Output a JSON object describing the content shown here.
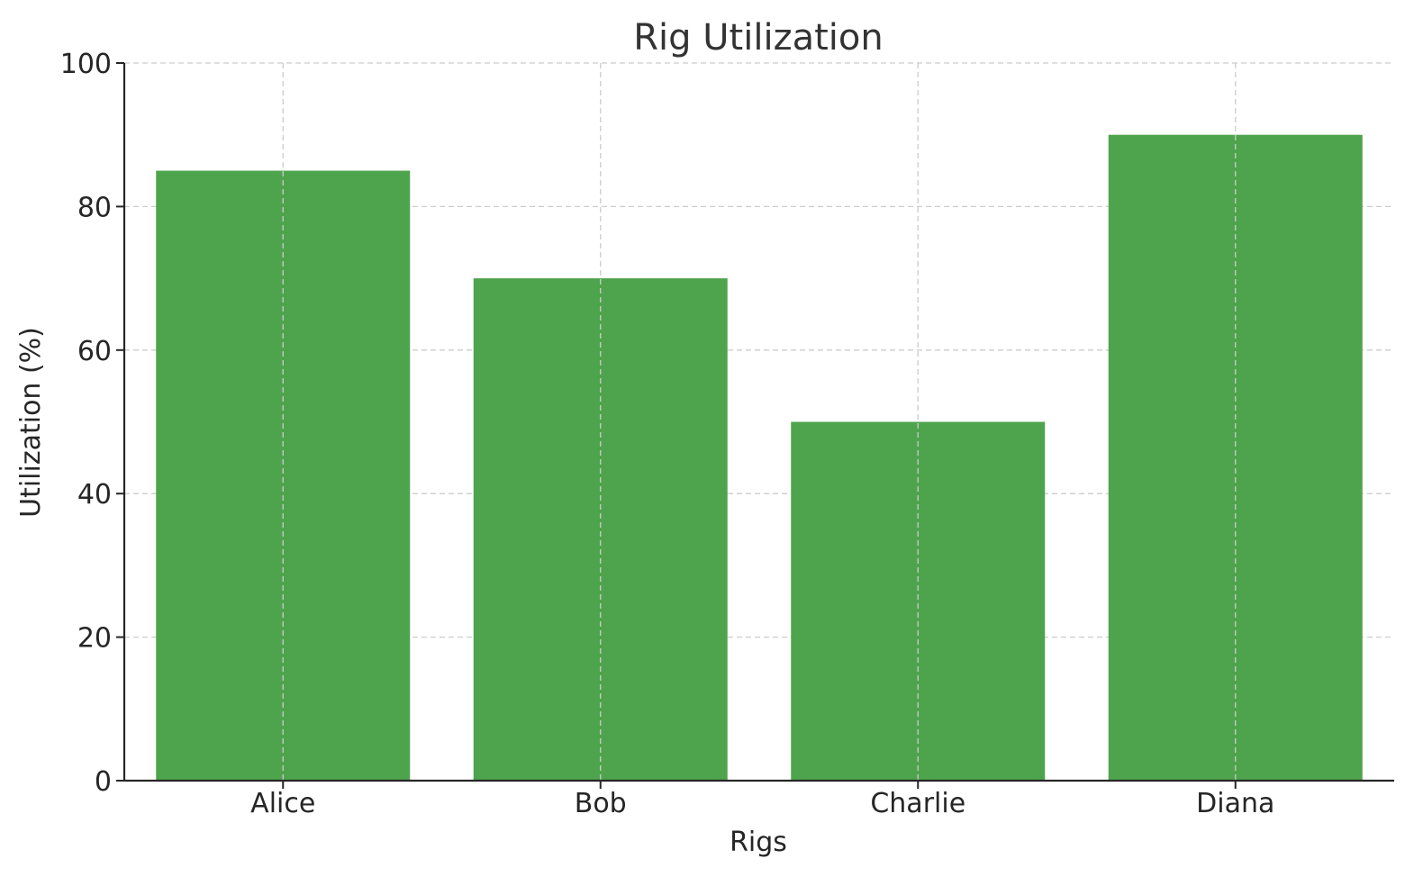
{
  "chart_data": {
    "type": "bar",
    "title": "Rig Utilization",
    "xlabel": "Rigs",
    "ylabel": "Utilization (%)",
    "categories": [
      "Alice",
      "Bob",
      "Charlie",
      "Diana"
    ],
    "values": [
      85,
      70,
      50,
      90
    ],
    "ylim": [
      0,
      100
    ],
    "yticks": [
      0,
      20,
      40,
      60,
      80,
      100
    ],
    "grid": true,
    "legend": "none",
    "bar_color": "#4ea44c",
    "grid_color": "#cccccc",
    "axis_color": "#262626"
  }
}
